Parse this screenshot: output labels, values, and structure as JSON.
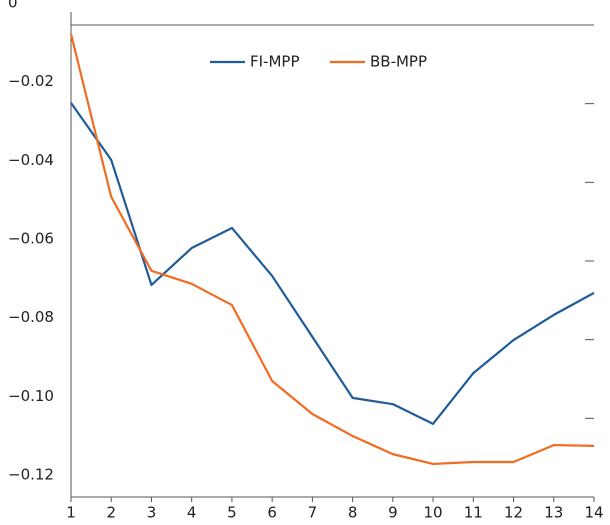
{
  "chart_data": {
    "type": "line",
    "x": [
      1,
      2,
      3,
      4,
      5,
      6,
      7,
      8,
      9,
      10,
      11,
      12,
      13,
      14
    ],
    "series": [
      {
        "name": "FI-MPP",
        "color": "#1f5c99",
        "values": [
          -0.0198,
          -0.0343,
          -0.0661,
          -0.0567,
          -0.0516,
          -0.0638,
          -0.0793,
          -0.0948,
          -0.0964,
          -0.1014,
          -0.0885,
          -0.0801,
          -0.0737,
          -0.0681
        ]
      },
      {
        "name": "BB-MPP",
        "color": "#f26b21",
        "values": [
          -0.0023,
          -0.0437,
          -0.0625,
          -0.0658,
          -0.0712,
          -0.0905,
          -0.0989,
          -0.1045,
          -0.1091,
          -0.1116,
          -0.1111,
          -0.1111,
          -0.1068,
          -0.107
        ]
      }
    ],
    "xlim": [
      1,
      14
    ],
    "xticks": [
      1,
      2,
      3,
      4,
      5,
      6,
      7,
      8,
      9,
      10,
      11,
      12,
      13,
      14
    ],
    "ylim": [
      -0.12,
      0
    ],
    "yticks": [
      0,
      {
        "value": -0.02,
        "label": "−0.02"
      },
      {
        "value": -0.04,
        "label": "−0.04"
      },
      {
        "value": -0.06,
        "label": "−0.06"
      },
      {
        "value": -0.08,
        "label": "−0.08"
      },
      {
        "value": -0.1,
        "label": "−0.10"
      },
      {
        "value": -0.12,
        "label": "−0.12"
      }
    ],
    "legend": "top"
  }
}
